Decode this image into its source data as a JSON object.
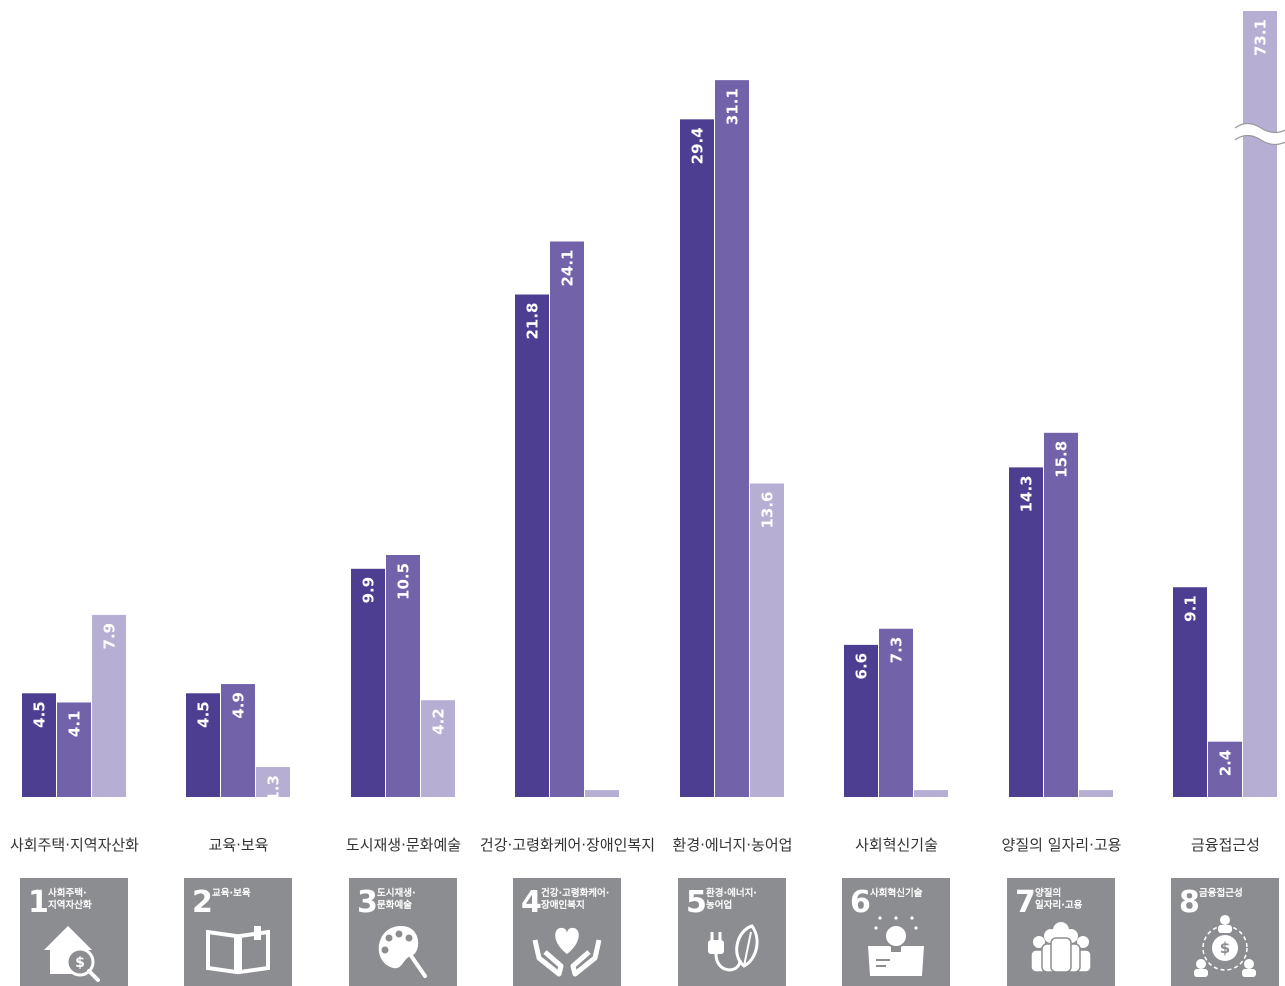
{
  "chart_data": {
    "type": "bar",
    "title": "",
    "xlabel": "",
    "ylabel": "",
    "ylim": [
      0,
      32
    ],
    "grid": false,
    "axis_break": {
      "series_index": 2,
      "category_index": 7,
      "actual_value": 73.1
    },
    "categories": [
      "사회주택·지역자산화",
      "교육·보육",
      "도시재생·문화예술",
      "건강·고령화케어·장애인복지",
      "환경·에너지·농어업",
      "사회혁신기술",
      "양질의 일자리·고용",
      "금융접근성"
    ],
    "series": [
      {
        "color": "#4d3e92",
        "values": [
          4.5,
          4.5,
          9.9,
          21.8,
          29.4,
          6.6,
          14.3,
          9.1
        ],
        "labels": [
          "4.5",
          "4.5",
          "9.9",
          "21.8",
          "29.4",
          "6.6",
          "14.3",
          "9.1"
        ]
      },
      {
        "color": "#7262aa",
        "values": [
          4.1,
          4.9,
          10.5,
          24.1,
          31.1,
          7.3,
          15.8,
          2.4
        ],
        "labels": [
          "4.1",
          "4.9",
          "10.5",
          "24.1",
          "31.1",
          "7.3",
          "15.8",
          "2.4"
        ]
      },
      {
        "color": "#b7aed4",
        "values": [
          7.9,
          1.3,
          4.2,
          0.3,
          13.6,
          0.3,
          0.3,
          73.1
        ],
        "labels": [
          "7.9",
          "1.3",
          "4.2",
          "",
          "13.6",
          "",
          "",
          "73.1"
        ]
      }
    ]
  },
  "badges": [
    {
      "number": "1",
      "lines": [
        "사회주택·",
        "지역자산화"
      ],
      "icon": "house-coin-magnifier-icon"
    },
    {
      "number": "2",
      "lines": [
        "교육·보육"
      ],
      "icon": "open-book-icon"
    },
    {
      "number": "3",
      "lines": [
        "도시재생·",
        "문화예술"
      ],
      "icon": "palette-brush-icon"
    },
    {
      "number": "4",
      "lines": [
        "건강·고령화케어·",
        "장애인복지"
      ],
      "icon": "heart-hands-icon"
    },
    {
      "number": "5",
      "lines": [
        "환경·에너지·",
        "농어업"
      ],
      "icon": "plug-leaf-icon"
    },
    {
      "number": "6",
      "lines": [
        "사회혁신기술"
      ],
      "icon": "lightbulb-box-icon"
    },
    {
      "number": "7",
      "lines": [
        "양질의",
        "일자리·고용"
      ],
      "icon": "people-group-icon"
    },
    {
      "number": "8",
      "lines": [
        "금융접근성"
      ],
      "icon": "coin-network-icon"
    }
  ],
  "colors": {
    "badge_bg": "#8c8d90",
    "label_text": "#333333"
  }
}
